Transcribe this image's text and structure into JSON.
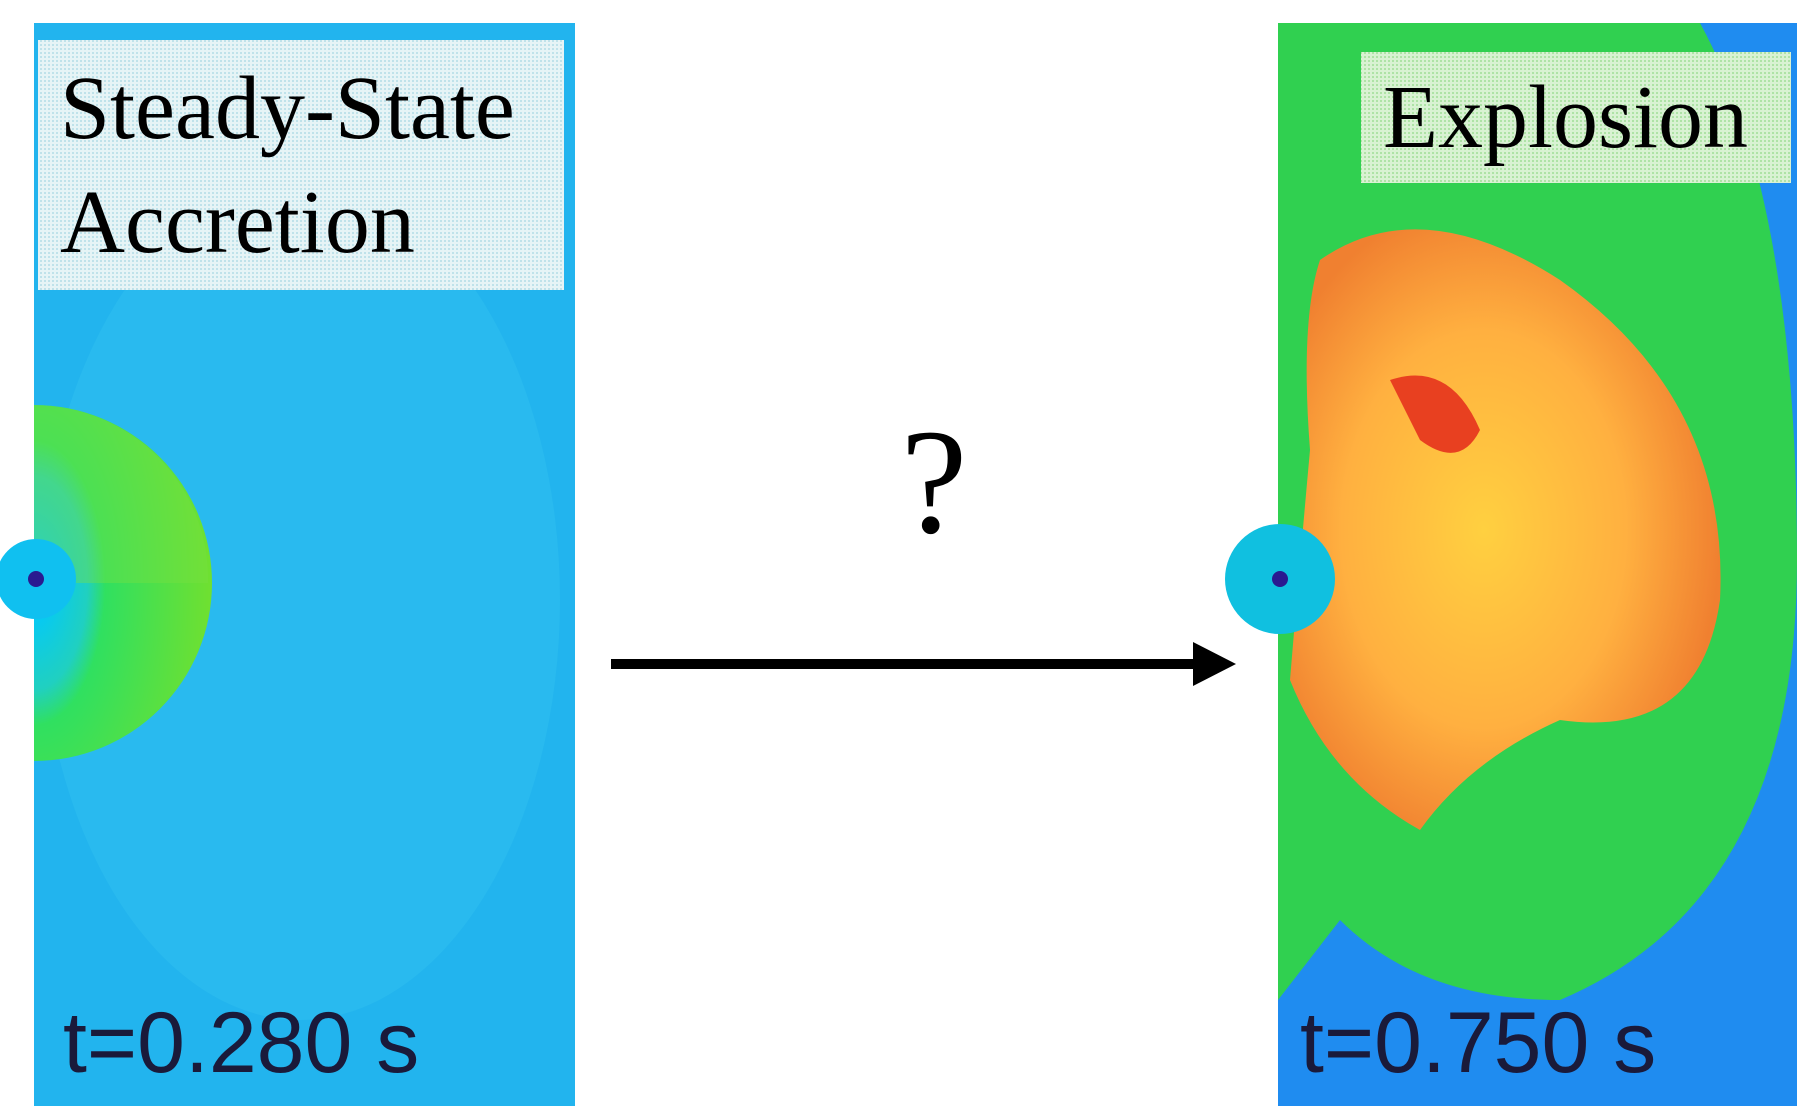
{
  "panels": [
    {
      "label_lines": [
        "Steady-State",
        "Accretion"
      ],
      "time": "t=0.280 s"
    },
    {
      "label_lines": [
        "Explosion"
      ],
      "time": "t=0.750 s"
    }
  ],
  "transition": {
    "mark": "?"
  }
}
